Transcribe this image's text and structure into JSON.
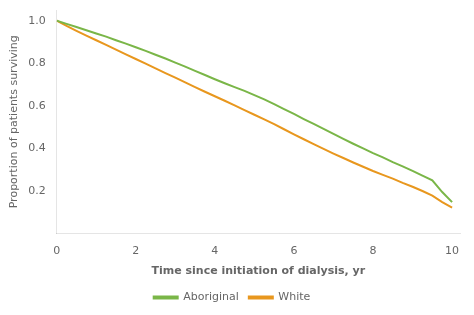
{
  "chart_data": {
    "type": "line",
    "x": [
      0,
      0.25,
      0.5,
      0.75,
      1.0,
      1.25,
      1.5,
      1.75,
      2.0,
      2.25,
      2.5,
      2.75,
      3.0,
      3.25,
      3.5,
      3.75,
      4.0,
      4.25,
      4.5,
      4.75,
      5.0,
      5.25,
      5.5,
      5.75,
      6.0,
      6.25,
      6.5,
      6.75,
      7.0,
      7.25,
      7.5,
      7.75,
      8.0,
      8.25,
      8.5,
      8.75,
      9.0,
      9.25,
      9.5,
      9.75,
      10.0
    ],
    "series": [
      {
        "name": "Aboriginal",
        "color": "#7ab648",
        "values": [
          1.0,
          0.985,
          0.97,
          0.955,
          0.94,
          0.925,
          0.908,
          0.892,
          0.875,
          0.858,
          0.84,
          0.822,
          0.803,
          0.784,
          0.764,
          0.745,
          0.725,
          0.706,
          0.688,
          0.67,
          0.65,
          0.63,
          0.608,
          0.585,
          0.562,
          0.538,
          0.515,
          0.492,
          0.468,
          0.445,
          0.422,
          0.4,
          0.378,
          0.358,
          0.336,
          0.316,
          0.295,
          0.272,
          0.25,
          0.195,
          0.148
        ]
      },
      {
        "name": "White",
        "color": "#e8971e",
        "values": [
          1.0,
          0.975,
          0.952,
          0.93,
          0.908,
          0.886,
          0.864,
          0.842,
          0.82,
          0.798,
          0.776,
          0.754,
          0.732,
          0.71,
          0.688,
          0.666,
          0.645,
          0.624,
          0.602,
          0.58,
          0.558,
          0.536,
          0.514,
          0.49,
          0.466,
          0.443,
          0.42,
          0.398,
          0.376,
          0.355,
          0.334,
          0.314,
          0.294,
          0.276,
          0.258,
          0.238,
          0.22,
          0.2,
          0.178,
          0.148,
          0.122
        ]
      }
    ],
    "xlabel": "Time since initiation of dialysis, yr",
    "ylabel": "Proportion of patients surviving",
    "xlim": [
      0,
      10.2
    ],
    "ylim": [
      0,
      1.05
    ],
    "xticks": [
      0,
      2,
      4,
      6,
      8,
      10
    ],
    "yticks": [
      0.2,
      0.4,
      0.6,
      0.8,
      {
        "value": 1.0,
        "label": "1.0"
      }
    ],
    "grid": false,
    "legend": "bottom"
  }
}
